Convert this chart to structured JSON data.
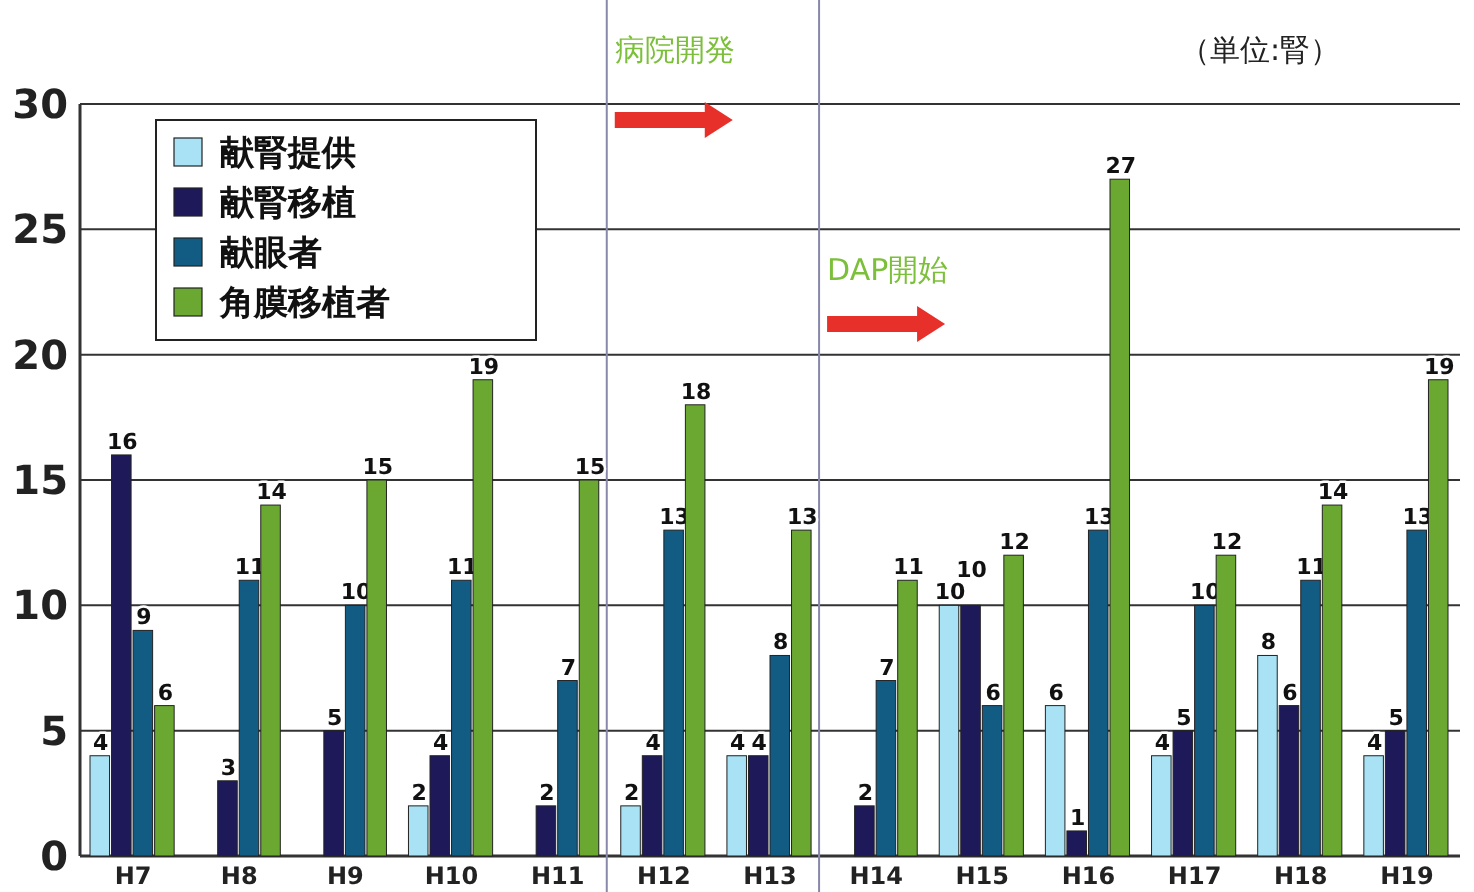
{
  "chart_data": {
    "type": "bar",
    "categories": [
      "H7",
      "H8",
      "H9",
      "H10",
      "H11",
      "H12",
      "H13",
      "H14",
      "H15",
      "H16",
      "H17",
      "H18",
      "H19"
    ],
    "series": [
      {
        "name": "献腎提供",
        "color": "#a8e2f4",
        "values": [
          4,
          0,
          0,
          2,
          0,
          2,
          4,
          0,
          10,
          6,
          4,
          8,
          4
        ],
        "value_labels": [
          "4",
          null,
          null,
          "2",
          null,
          "2",
          "4",
          null,
          "10",
          "6",
          "4",
          "8",
          "4"
        ]
      },
      {
        "name": "献腎移植",
        "color": "#1e1a5a",
        "values": [
          16,
          3,
          5,
          4,
          2,
          4,
          4,
          2,
          10,
          1,
          5,
          6,
          5
        ],
        "value_labels": [
          "16",
          "3",
          "5",
          "4",
          "2",
          "4",
          "4",
          "2",
          "10",
          "1",
          "5",
          "6",
          "5"
        ]
      },
      {
        "name": "献眼者",
        "color": "#125c84",
        "values": [
          9,
          11,
          10,
          11,
          7,
          13,
          8,
          7,
          6,
          13,
          10,
          11,
          13
        ],
        "value_labels": [
          "9",
          "11",
          "10",
          "11",
          "7",
          "13",
          "8",
          "7",
          "6",
          "13",
          "10",
          "11",
          "13"
        ]
      },
      {
        "name": "角膜移植者",
        "color": "#6aa832",
        "values": [
          6,
          14,
          15,
          19,
          15,
          18,
          13,
          11,
          12,
          27,
          12,
          14,
          19
        ],
        "value_labels": [
          "6",
          "14",
          "15",
          "19",
          "15",
          "18",
          "13",
          "11",
          "12",
          "27",
          "12",
          "14",
          "19"
        ]
      }
    ],
    "ylim": [
      0,
      30
    ],
    "yticks": [
      0,
      5,
      10,
      15,
      20,
      25,
      30
    ],
    "grid": "y",
    "legend": "top left",
    "annotations": [
      "（単位:腎）",
      "病院開発",
      "DAP開始"
    ]
  }
}
